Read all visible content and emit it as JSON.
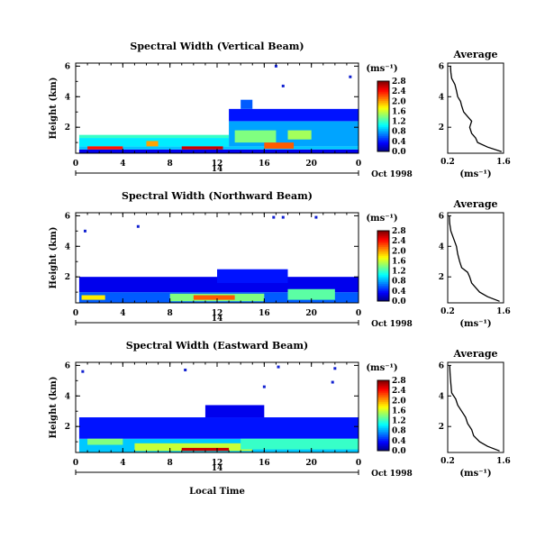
{
  "figure": {
    "date_label": "Oct 1998",
    "xlabel": "Local Time",
    "day_label": "14",
    "ylabel": "Height (km)",
    "unit_label": "(ms⁻¹)",
    "average_title": "Average",
    "average_xlabel": "(ms⁻¹)"
  },
  "chart_data": [
    {
      "type": "heatmap",
      "title": "Spectral Width (Vertical Beam)",
      "x_ticks": [
        "0",
        "4",
        "8",
        "12",
        "16",
        "20",
        "0"
      ],
      "x_range": [
        0,
        24
      ],
      "y_ticks": [
        "2",
        "4",
        "6"
      ],
      "y_range": [
        0.3,
        6.2
      ],
      "colorbar_ticks": [
        "0.0",
        "0.4",
        "0.8",
        "1.2",
        "1.6",
        "2.0",
        "2.4",
        "2.8"
      ],
      "colorbar_range": [
        0,
        2.8
      ],
      "average": {
        "x_ticks": [
          "0.2",
          "1.6"
        ],
        "y_ticks": [
          "2",
          "4",
          "6"
        ],
        "x_range": [
          0.2,
          1.6
        ],
        "y_range": [
          0.3,
          6.2
        ],
        "profile": [
          [
            1.55,
            0.4
          ],
          [
            1.2,
            0.7
          ],
          [
            0.95,
            1.0
          ],
          [
            0.9,
            1.3
          ],
          [
            0.8,
            1.6
          ],
          [
            0.75,
            2.0
          ],
          [
            0.8,
            2.4
          ],
          [
            0.7,
            2.7
          ],
          [
            0.6,
            3.0
          ],
          [
            0.55,
            3.4
          ],
          [
            0.52,
            3.7
          ],
          [
            0.45,
            4.0
          ],
          [
            0.42,
            4.4
          ],
          [
            0.38,
            4.8
          ],
          [
            0.3,
            5.2
          ],
          [
            0.28,
            5.6
          ],
          [
            0.27,
            6.0
          ]
        ]
      },
      "cells": [
        [
          0.3,
          24.0,
          0.3,
          0.55,
          0.3
        ],
        [
          0.3,
          24.0,
          0.55,
          0.75,
          0.9
        ],
        [
          0.3,
          13.0,
          0.75,
          1.3,
          1.0
        ],
        [
          1.0,
          4.0,
          0.55,
          0.75,
          2.4
        ],
        [
          9.0,
          12.5,
          0.55,
          0.75,
          2.6
        ],
        [
          6.0,
          7.0,
          0.75,
          1.1,
          2.0
        ],
        [
          0.3,
          13.0,
          1.3,
          1.5,
          1.2
        ],
        [
          13.0,
          24.0,
          0.75,
          2.4,
          0.8
        ],
        [
          13.0,
          24.0,
          2.4,
          3.2,
          0.4
        ],
        [
          14.0,
          15.0,
          3.2,
          3.8,
          0.6
        ],
        [
          13.5,
          17.0,
          1.0,
          1.8,
          1.4
        ],
        [
          18.0,
          20.0,
          1.2,
          1.8,
          1.5
        ],
        [
          16.0,
          18.5,
          0.6,
          1.0,
          2.2
        ]
      ],
      "dots": [
        [
          17.0,
          6.0
        ],
        [
          17.6,
          4.7
        ],
        [
          23.3,
          5.3
        ]
      ]
    },
    {
      "type": "heatmap",
      "title": "Spectral Width (Northward Beam)",
      "x_ticks": [
        "0",
        "4",
        "8",
        "12",
        "16",
        "20",
        "0"
      ],
      "x_range": [
        0,
        24
      ],
      "y_ticks": [
        "2",
        "4",
        "6"
      ],
      "y_range": [
        0.3,
        6.2
      ],
      "colorbar_ticks": [
        "0.0",
        "0.4",
        "0.8",
        "1.2",
        "1.6",
        "2.0",
        "2.4",
        "2.8"
      ],
      "colorbar_range": [
        0,
        2.8
      ],
      "average": {
        "x_ticks": [
          "0.2",
          "1.6"
        ],
        "y_ticks": [
          "2",
          "4",
          "6"
        ],
        "x_range": [
          0.2,
          1.6
        ],
        "y_range": [
          0.3,
          6.2
        ],
        "profile": [
          [
            1.5,
            0.4
          ],
          [
            1.2,
            0.7
          ],
          [
            1.0,
            1.0
          ],
          [
            0.9,
            1.3
          ],
          [
            0.8,
            1.6
          ],
          [
            0.75,
            2.0
          ],
          [
            0.7,
            2.3
          ],
          [
            0.55,
            2.6
          ],
          [
            0.5,
            3.0
          ],
          [
            0.45,
            3.5
          ],
          [
            0.42,
            4.0
          ],
          [
            0.35,
            4.5
          ],
          [
            0.28,
            5.0
          ],
          [
            0.25,
            5.5
          ],
          [
            0.24,
            6.0
          ]
        ]
      },
      "cells": [
        [
          0.3,
          24.0,
          0.3,
          1.0,
          0.6
        ],
        [
          0.3,
          24.0,
          1.0,
          2.0,
          0.3
        ],
        [
          8.0,
          16.0,
          0.4,
          0.9,
          1.4
        ],
        [
          10.0,
          13.5,
          0.5,
          0.8,
          2.2
        ],
        [
          18.0,
          22.0,
          0.5,
          1.2,
          1.3
        ],
        [
          0.5,
          2.5,
          0.5,
          0.8,
          1.8
        ],
        [
          12.0,
          18.0,
          1.6,
          2.5,
          0.4
        ]
      ],
      "dots": [
        [
          0.8,
          5.0
        ],
        [
          16.8,
          5.9
        ],
        [
          17.6,
          5.9
        ],
        [
          5.3,
          5.3
        ],
        [
          20.4,
          5.9
        ]
      ]
    },
    {
      "type": "heatmap",
      "title": "Spectral Width (Eastward Beam)",
      "x_ticks": [
        "0",
        "4",
        "8",
        "12",
        "16",
        "20",
        "0"
      ],
      "x_range": [
        0,
        24
      ],
      "y_ticks": [
        "2",
        "4",
        "6"
      ],
      "y_range": [
        0.3,
        6.2
      ],
      "colorbar_ticks": [
        "0.0",
        "0.4",
        "0.8",
        "1.2",
        "1.6",
        "2.0",
        "2.4",
        "2.8"
      ],
      "colorbar_range": [
        0,
        2.8
      ],
      "average": {
        "x_ticks": [
          "0.2",
          "1.6"
        ],
        "y_ticks": [
          "2",
          "4",
          "6"
        ],
        "x_range": [
          0.2,
          1.6
        ],
        "y_range": [
          0.3,
          6.2
        ],
        "profile": [
          [
            1.5,
            0.4
          ],
          [
            1.2,
            0.7
          ],
          [
            1.0,
            1.0
          ],
          [
            0.85,
            1.4
          ],
          [
            0.8,
            1.8
          ],
          [
            0.7,
            2.2
          ],
          [
            0.65,
            2.6
          ],
          [
            0.55,
            3.0
          ],
          [
            0.45,
            3.4
          ],
          [
            0.4,
            3.8
          ],
          [
            0.3,
            4.2
          ],
          [
            0.28,
            4.8
          ],
          [
            0.26,
            5.4
          ],
          [
            0.25,
            6.0
          ]
        ]
      },
      "cells": [
        [
          0.3,
          24.0,
          0.3,
          1.2,
          0.9
        ],
        [
          0.3,
          24.0,
          1.2,
          2.6,
          0.4
        ],
        [
          5.0,
          15.0,
          0.4,
          0.9,
          1.6
        ],
        [
          9.0,
          13.0,
          0.4,
          0.6,
          2.6
        ],
        [
          14.0,
          24.0,
          0.5,
          1.2,
          1.2
        ],
        [
          11.0,
          16.0,
          2.6,
          3.4,
          0.3
        ],
        [
          1.0,
          4.0,
          0.8,
          1.2,
          1.4
        ]
      ],
      "dots": [
        [
          0.6,
          5.6
        ],
        [
          9.3,
          5.7
        ],
        [
          17.2,
          5.9
        ],
        [
          22.0,
          5.8
        ],
        [
          21.8,
          4.9
        ],
        [
          16.0,
          4.6
        ]
      ]
    }
  ]
}
